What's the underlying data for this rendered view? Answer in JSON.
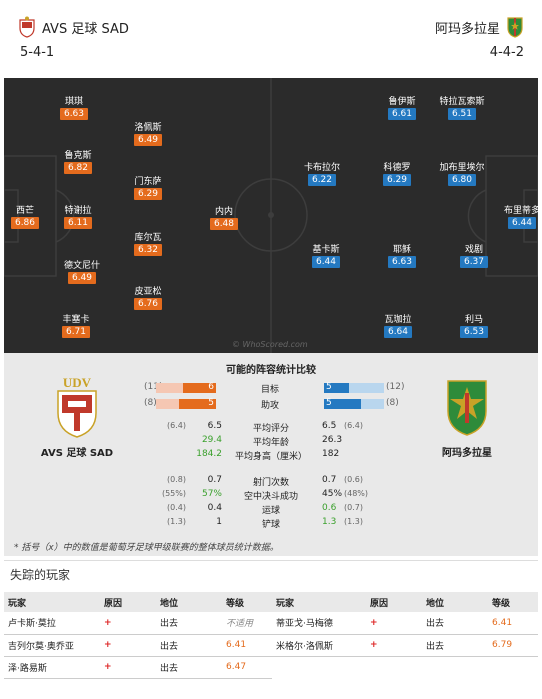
{
  "header": {
    "home_team": "AVS 足球 SAD",
    "away_team": "阿玛多拉星",
    "home_formation": "5-4-1",
    "away_formation": "4-4-2"
  },
  "pitch": {
    "home_players": [
      {
        "name": "琪琪",
        "rating": "6.63"
      },
      {
        "name": "洛佩斯",
        "rating": "6.49"
      },
      {
        "name": "鲁克斯",
        "rating": "6.82"
      },
      {
        "name": "门东萨",
        "rating": "6.29"
      },
      {
        "name": "西芒",
        "rating": "6.86"
      },
      {
        "name": "特谢拉",
        "rating": "6.11"
      },
      {
        "name": "内内",
        "rating": "6.48"
      },
      {
        "name": "库尔瓦",
        "rating": "6.32"
      },
      {
        "name": "德文尼什",
        "rating": "6.49"
      },
      {
        "name": "皮亚松",
        "rating": "6.76"
      },
      {
        "name": "丰塞卡",
        "rating": "6.71"
      }
    ],
    "away_players": [
      {
        "name": "鲁伊斯",
        "rating": "6.61"
      },
      {
        "name": "特拉瓦索斯",
        "rating": "6.51"
      },
      {
        "name": "卡布拉尔",
        "rating": "6.22"
      },
      {
        "name": "科德罗",
        "rating": "6.29"
      },
      {
        "name": "加布里埃尔",
        "rating": "6.80"
      },
      {
        "name": "布里蒂多",
        "rating": "6.44"
      },
      {
        "name": "基卡斯",
        "rating": "6.44"
      },
      {
        "name": "耶稣",
        "rating": "6.63"
      },
      {
        "name": "戏剧",
        "rating": "6.37"
      },
      {
        "name": "瓦珈拉",
        "rating": "6.64"
      },
      {
        "name": "利马",
        "rating": "6.53"
      }
    ],
    "watermark": "© WhoScored.com"
  },
  "stats": {
    "title": "可能的阵容统计比较",
    "home_name": "AVS 足球 SAD",
    "away_name": "阿玛多拉星",
    "bars": [
      {
        "label": "目标",
        "home": "6",
        "home_paren": "(11)",
        "away": "5",
        "away_paren": "(12)",
        "home_frac": 0.55,
        "away_frac": 0.42
      },
      {
        "label": "助攻",
        "home": "5",
        "home_paren": "(8)",
        "away": "5",
        "away_paren": "(8)",
        "home_frac": 0.62,
        "away_frac": 0.62
      }
    ],
    "rows": [
      {
        "label": "平均评分",
        "home": "6.5",
        "home_paren": "(6.4)",
        "away": "6.5",
        "away_paren": "(6.4)"
      },
      {
        "label": "平均年龄",
        "home": "29.4",
        "home_paren": "",
        "away": "26.3",
        "away_paren": ""
      },
      {
        "label": "平均身高（厘米）",
        "home": "184.2",
        "home_paren": "",
        "away": "182",
        "away_paren": ""
      },
      {
        "label": "射门次数",
        "home": "0.7",
        "home_paren": "(0.8)",
        "away": "0.7",
        "away_paren": "(0.6)"
      },
      {
        "label": "空中决斗成功",
        "home": "57%",
        "home_paren": "(55%)",
        "away": "45%",
        "away_paren": "(48%)"
      },
      {
        "label": "运球",
        "home": "0.4",
        "home_paren": "(0.4)",
        "away": "0.6",
        "away_paren": "(0.7)"
      },
      {
        "label": "铲球",
        "home": "1",
        "home_paren": "(1.3)",
        "away": "1.3",
        "away_paren": "(1.3)"
      }
    ],
    "note": "* 括号（x）中的数值是葡萄牙足球甲级联赛的整体球员统计数据。"
  },
  "missing": {
    "title": "失踪的玩家",
    "headers": [
      "玩家",
      "原因",
      "地位",
      "等级"
    ],
    "left": [
      {
        "player": "卢卡斯·莫拉",
        "status": "出去",
        "level": "不适用"
      },
      {
        "player": "吉列尔莫·奥乔亚",
        "status": "出去",
        "level": "6.41"
      },
      {
        "player": "泽·路易斯",
        "status": "出去",
        "level": "6.47"
      }
    ],
    "right": [
      {
        "player": "蒂亚戈·马梅德",
        "status": "出去",
        "level": "6.41"
      },
      {
        "player": "米格尔·洛佩斯",
        "status": "出去",
        "level": "6.79"
      }
    ]
  }
}
